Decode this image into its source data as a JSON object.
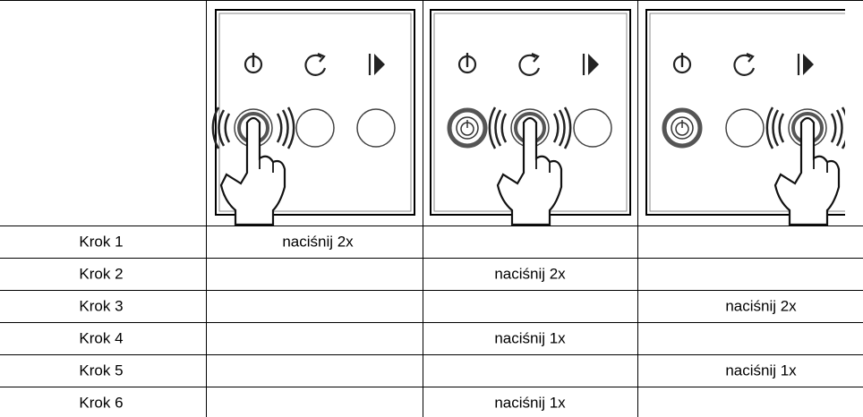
{
  "table": {
    "rows": [
      [
        "Krok 1",
        "naciśnij 2x",
        null,
        null
      ],
      [
        "Krok 2",
        null,
        "naciśnij 2x",
        null
      ],
      [
        "Krok 3",
        null,
        null,
        "naciśnij 2x"
      ],
      [
        "Krok 4",
        null,
        "naciśnij 1x",
        null
      ],
      [
        "Krok 5",
        null,
        null,
        "naciśnij 1x"
      ],
      [
        "Krok 6",
        null,
        "naciśnij 1x",
        null
      ]
    ]
  }
}
